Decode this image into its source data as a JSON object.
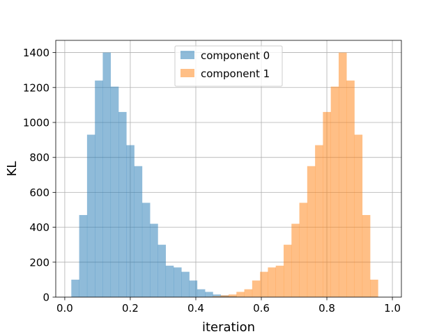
{
  "chart_data": {
    "type": "bar",
    "title": "",
    "xlabel": "iteration",
    "ylabel": "KL",
    "xlim": [
      -0.0275,
      1.0275
    ],
    "ylim": [
      0,
      1470
    ],
    "xticks": [
      0.0,
      0.2,
      0.4,
      0.6,
      0.8,
      1.0
    ],
    "xtick_labels": [
      "0.0",
      "0.2",
      "0.4",
      "0.6",
      "0.8",
      "1.0"
    ],
    "yticks": [
      0,
      200,
      400,
      600,
      800,
      1000,
      1200,
      1400
    ],
    "ytick_labels": [
      "0",
      "200",
      "400",
      "600",
      "800",
      "1000",
      "1200",
      "1400"
    ],
    "grid": true,
    "legend_position": "upper-center",
    "bin_start": 0.02,
    "bin_width": 0.024,
    "series": [
      {
        "name": "component 0",
        "color": "#1f77b4",
        "opacity": 0.5,
        "values": [
          100,
          470,
          930,
          1240,
          1400,
          1205,
          1060,
          870,
          750,
          540,
          420,
          300,
          180,
          170,
          145,
          95,
          45,
          30,
          15,
          10,
          5,
          2,
          0,
          0,
          0,
          0,
          0,
          0,
          0,
          0,
          0,
          0,
          0,
          0,
          0,
          0,
          0,
          0,
          0,
          0
        ]
      },
      {
        "name": "component 1",
        "color": "#ff7f0e",
        "opacity": 0.5,
        "values": [
          0,
          0,
          0,
          0,
          0,
          0,
          0,
          0,
          0,
          0,
          0,
          0,
          0,
          0,
          0,
          0,
          0,
          2,
          5,
          10,
          15,
          30,
          45,
          95,
          145,
          170,
          180,
          300,
          420,
          540,
          750,
          870,
          1060,
          1205,
          1400,
          1240,
          930,
          470,
          100,
          0
        ]
      }
    ]
  }
}
